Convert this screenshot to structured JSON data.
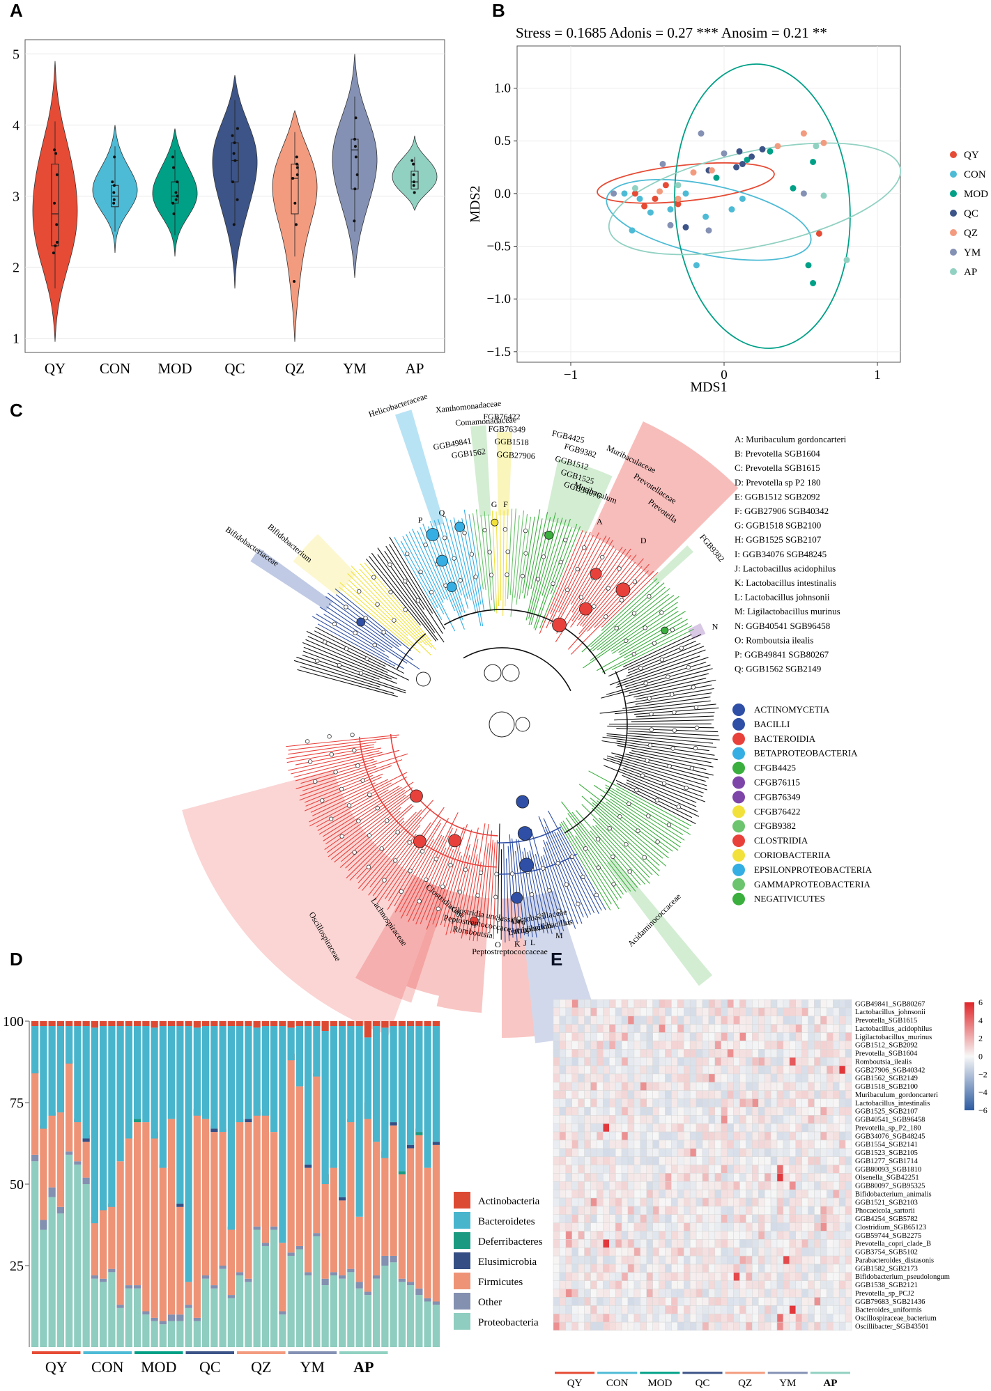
{
  "panels": {
    "a": "A",
    "b": "B",
    "c": "C",
    "d": "D",
    "e": "E"
  },
  "colors": {
    "QY": "#E64B35",
    "CON": "#4DBBD5",
    "MOD": "#00A087",
    "QC": "#3C5488",
    "QZ": "#F39B7F",
    "YM": "#8491B4",
    "AP": "#91D1C2"
  },
  "chart_data": [
    {
      "id": "A",
      "type": "violin",
      "title": "",
      "categories": [
        "QY",
        "CON",
        "MOD",
        "QC",
        "QZ",
        "YM",
        "AP"
      ],
      "ylim": [
        0.8,
        5.2
      ],
      "yticks": [
        1,
        2,
        3,
        4,
        5
      ],
      "violin_range": [
        [
          0.95,
          4.9
        ],
        [
          2.2,
          4.0
        ],
        [
          2.15,
          3.95
        ],
        [
          1.7,
          4.7
        ],
        [
          0.95,
          4.2
        ],
        [
          1.85,
          5.0
        ],
        [
          2.8,
          3.85
        ]
      ],
      "box": [
        [
          2.3,
          2.75,
          3.45
        ],
        [
          2.85,
          3.0,
          3.15
        ],
        [
          2.9,
          3.0,
          3.2
        ],
        [
          3.2,
          3.5,
          3.75
        ],
        [
          2.75,
          3.25,
          3.45
        ],
        [
          3.1,
          3.65,
          3.8
        ],
        [
          3.1,
          3.2,
          3.35
        ]
      ],
      "points": [
        [
          2.2,
          2.3,
          2.35,
          2.6,
          2.9,
          3.3,
          3.6,
          3.65
        ],
        [
          2.9,
          2.95,
          3.05,
          3.15,
          3.2,
          3.55
        ],
        [
          2.75,
          2.9,
          2.95,
          3.0,
          3.05,
          3.2,
          3.4,
          3.55
        ],
        [
          2.6,
          2.95,
          3.2,
          3.5,
          3.6,
          3.75,
          3.85,
          3.95
        ],
        [
          1.8,
          2.6,
          2.9,
          3.25,
          3.3,
          3.4,
          3.45,
          3.55
        ],
        [
          2.65,
          3.1,
          3.3,
          3.55,
          3.7,
          3.8,
          4.1
        ],
        [
          3.05,
          3.15,
          3.2,
          3.3,
          3.45,
          3.5
        ]
      ]
    },
    {
      "id": "B",
      "type": "scatter",
      "title": "Stress = 0.1685 Adonis = 0.27 *** Anosim = 0.21 **",
      "xlabel": "MDS1",
      "ylabel": "MDS2",
      "xlim": [
        -1.35,
        1.15
      ],
      "ylim": [
        -1.6,
        1.4
      ],
      "xticks": [
        -1,
        0,
        1
      ],
      "yticks": [
        -1.5,
        -1.0,
        -0.5,
        0.0,
        0.5,
        1.0
      ],
      "ytick_labels": [
        "−1.5",
        "−1.0",
        "−0.5",
        "0.0",
        "0.5",
        "1.0"
      ],
      "xtick_labels": [
        "−1",
        "0",
        "1"
      ],
      "legend": [
        "QY",
        "CON",
        "MOD",
        "QC",
        "QZ",
        "YM",
        "AP"
      ],
      "points": {
        "QY": [
          [
            -0.58,
            0.0
          ],
          [
            -0.52,
            -0.12
          ],
          [
            -0.45,
            -0.05
          ],
          [
            -0.38,
            0.08
          ],
          [
            -0.3,
            -0.1
          ],
          [
            0.62,
            -0.38
          ]
        ],
        "CON": [
          [
            -0.65,
            0.0
          ],
          [
            -0.55,
            -0.05
          ],
          [
            -0.48,
            -0.18
          ],
          [
            -0.35,
            -0.15
          ],
          [
            -0.25,
            0.0
          ],
          [
            -0.12,
            -0.22
          ],
          [
            0.05,
            -0.15
          ],
          [
            -0.18,
            -0.68
          ],
          [
            -0.6,
            -0.35
          ],
          [
            0.12,
            -0.05
          ]
        ],
        "MOD": [
          [
            -0.05,
            0.15
          ],
          [
            0.15,
            0.32
          ],
          [
            0.3,
            0.4
          ],
          [
            0.45,
            0.05
          ],
          [
            0.58,
            0.3
          ],
          [
            0.55,
            -0.68
          ],
          [
            0.58,
            -0.85
          ]
        ],
        "QC": [
          [
            -0.1,
            0.22
          ],
          [
            0.08,
            0.25
          ],
          [
            0.12,
            0.28
          ],
          [
            0.18,
            0.35
          ],
          [
            0.25,
            0.42
          ],
          [
            0.1,
            0.4
          ],
          [
            -0.25,
            -0.32
          ]
        ],
        "QZ": [
          [
            -0.2,
            0.2
          ],
          [
            -0.08,
            0.22
          ],
          [
            -0.42,
            0.02
          ],
          [
            0.35,
            0.45
          ],
          [
            0.52,
            0.57
          ],
          [
            0.65,
            0.48
          ],
          [
            -0.3,
            -0.05
          ]
        ],
        "YM": [
          [
            -0.4,
            0.28
          ],
          [
            -0.72,
            0.0
          ],
          [
            0.0,
            0.38
          ],
          [
            0.52,
            0.0
          ],
          [
            -0.1,
            -0.35
          ],
          [
            -0.15,
            0.57
          ],
          [
            -0.35,
            -0.3
          ]
        ],
        "AP": [
          [
            0.6,
            0.45
          ],
          [
            0.65,
            -0.02
          ],
          [
            0.8,
            -0.63
          ],
          [
            -0.3,
            0.08
          ],
          [
            -0.58,
            0.05
          ]
        ]
      },
      "ellipses": {
        "QY": {
          "cx": -0.25,
          "cy": 0.1,
          "rx": 0.58,
          "ry": 0.17,
          "angle": -6
        },
        "CON": {
          "cx": -0.1,
          "cy": -0.25,
          "rx": 0.68,
          "ry": 0.33,
          "angle": 12
        },
        "MOD": {
          "cx": 0.25,
          "cy": -0.12,
          "rx": 0.57,
          "ry": 1.35,
          "angle": -4
        },
        "AP": {
          "cx": 0.2,
          "cy": -0.05,
          "rx": 0.97,
          "ry": 0.45,
          "angle": -12
        }
      }
    },
    {
      "id": "C",
      "type": "cladogram",
      "sector_labels": [
        "Helicobacteraceae",
        "Xanthomonadaceae",
        "Comamonadaceae",
        "FGB76422",
        "FGB76349",
        "GGB1518",
        "GGB27906",
        "GGB49841",
        "GGB1562",
        "FGB4425",
        "FGB9382",
        "GGB1512",
        "GGB1525",
        "GGB34076",
        "Muribaculaceae",
        "Muribaculum",
        "Prevotellaceae",
        "Prevotella",
        "FGB9382",
        "Bifidobacteriaceae",
        "Bifidobacterium",
        "Oscillospiraceae",
        "Lachnospiraceae",
        "Clostridiaceae",
        "Romboutsia",
        "Peptostreptococcaceae",
        "Clostridia unclassified",
        "Lactobacillus",
        "Lactobacillaceae",
        "Ligilactobacillus",
        "Peptostreptococcaceae",
        "Acidaminococcaceae"
      ],
      "node_letters": [
        "P",
        "Q",
        "G",
        "F",
        "A",
        "D",
        "N",
        "O",
        "J",
        "K",
        "L",
        "M"
      ],
      "key": [
        "A: Muribaculum gordoncarteri",
        "B: Prevotella SGB1604",
        "C: Prevotella SGB1615",
        "D: Prevotella sp P2 180",
        "E: GGB1512 SGB2092",
        "F: GGB27906 SGB40342",
        "G: GGB1518 SGB2100",
        "H: GGB1525 SGB2107",
        "I: GGB34076 SGB48245",
        "J: Lactobacillus acidophilus",
        "K: Lactobacillus intestinalis",
        "L: Lactobacillus johnsonii",
        "M: Ligilactobacillus murinus",
        "N: GGB40541 SGB96458",
        "O: Romboutsia ilealis",
        "P: GGB49841 SGB80267",
        "Q: GGB1562 SGB2149"
      ],
      "legend": [
        {
          "label": "ACTINOMYCETIA",
          "color": "#2F4FA6"
        },
        {
          "label": "BACILLI",
          "color": "#2F4FA6"
        },
        {
          "label": "BACTEROIDIA",
          "color": "#E8413C"
        },
        {
          "label": "BETAPROTEOBACTERIA",
          "color": "#35AEE3"
        },
        {
          "label": "CFGB4425",
          "color": "#3BAF3E"
        },
        {
          "label": "CFGB76115",
          "color": "#7E45A8"
        },
        {
          "label": "CFGB76349",
          "color": "#7E45A8"
        },
        {
          "label": "CFGB76422",
          "color": "#F2E13A"
        },
        {
          "label": "CFGB9382",
          "color": "#6CC46E"
        },
        {
          "label": "CLOSTRIDIA",
          "color": "#E8413C"
        },
        {
          "label": "CORIOBACTERIIA",
          "color": "#F2E13A"
        },
        {
          "label": "EPSILONPROTEOBACTERIA",
          "color": "#35AEE3"
        },
        {
          "label": "GAMMAPROTEOBACTERIA",
          "color": "#6CC46E"
        },
        {
          "label": "NEGATIVICUTES",
          "color": "#3BAF3E"
        }
      ]
    },
    {
      "id": "D",
      "type": "stacked_bar",
      "ylim": [
        0,
        100
      ],
      "yticks": [
        25,
        50,
        75,
        100
      ],
      "groups": [
        "QY",
        "CON",
        "MOD",
        "QC",
        "QZ",
        "YM",
        "AP"
      ],
      "bars_per_group": 6,
      "series_names": [
        "Actinobacteria",
        "Bacteroidetes",
        "Deferribacteres",
        "Elusimicrobia",
        "Firmicutes",
        "Other",
        "Proteobacteria"
      ],
      "series_colors": [
        "#DC4A34",
        "#48B5CD",
        "#1B9A81",
        "#354F84",
        "#EE9376",
        "#8390B0",
        "#8ECDBF"
      ],
      "proteobacteria": [
        57,
        36,
        46,
        41,
        59,
        56,
        50,
        21,
        20,
        23,
        12,
        18,
        18,
        10,
        8,
        7,
        8,
        8,
        12,
        8,
        21,
        18,
        24,
        15,
        22,
        20,
        36,
        31,
        36,
        10,
        28,
        30,
        22,
        34,
        19,
        22,
        21,
        23,
        18,
        16,
        21,
        25,
        26,
        20,
        19,
        16,
        14,
        13
      ],
      "other": [
        2,
        3,
        3,
        2,
        1,
        1,
        2,
        1,
        1,
        1,
        1,
        1,
        1,
        1,
        1,
        1,
        2,
        2,
        1,
        1,
        1,
        1,
        1,
        1,
        1,
        1,
        1,
        1,
        1,
        1,
        1,
        1,
        1,
        1,
        2,
        1,
        1,
        1,
        2,
        1,
        1,
        3,
        2,
        1,
        1,
        2,
        1,
        1
      ],
      "firmicutes": [
        25,
        28,
        22,
        29,
        27,
        12,
        11,
        16,
        21,
        19,
        44,
        45,
        50,
        58,
        55,
        47,
        60,
        33,
        7,
        62,
        48,
        47,
        41,
        20,
        46,
        48,
        34,
        39,
        29,
        21,
        59,
        49,
        32,
        48,
        29,
        32,
        23,
        45,
        20,
        53,
        41,
        30,
        40,
        32,
        41,
        47,
        40,
        48
      ],
      "elusimicrobia": [
        0,
        0,
        0,
        0,
        0,
        0,
        1,
        0,
        0,
        0,
        0,
        0,
        0,
        0,
        0,
        0,
        0,
        1,
        0,
        0,
        0,
        1,
        0,
        0,
        0,
        1,
        0,
        0,
        0,
        0,
        0,
        0,
        1,
        0,
        0,
        0,
        1,
        0,
        0,
        0,
        0,
        0,
        1,
        0,
        1,
        0,
        0,
        1
      ],
      "deferribacteres": [
        0,
        0,
        0,
        0,
        0,
        0,
        0,
        0,
        0,
        0,
        0,
        0,
        1,
        0,
        0,
        0,
        0,
        0,
        0,
        0,
        0,
        0,
        0,
        0,
        0,
        0,
        0,
        0,
        0,
        0,
        0,
        0,
        0,
        0,
        0,
        0,
        0,
        0,
        0,
        0,
        0,
        0,
        0,
        1,
        0,
        1,
        0,
        0
      ],
      "actinobacteria": [
        1,
        1,
        1,
        0,
        1,
        1,
        1,
        2,
        1,
        1,
        0,
        0,
        0,
        0,
        2,
        1,
        0,
        0,
        0,
        2,
        0,
        1,
        1,
        1,
        1,
        0,
        2,
        1,
        0,
        0,
        2,
        0,
        0,
        1,
        3,
        1,
        0,
        1,
        0,
        5,
        0,
        2,
        0,
        0,
        1,
        1,
        0,
        0
      ]
    },
    {
      "id": "E",
      "type": "heatmap",
      "rows": [
        "GGB49841_SGB80267",
        "Lactobacillus_johnsonii",
        "Prevotella_SGB1615",
        "Lactobacillus_acidophilus",
        "Ligilactobacillus_murinus",
        "GGB1512_SGB2092",
        "Prevotella_SGB1604",
        "Romboutsia_ilealis",
        "GGB27906_SGB40342",
        "GGB1562_SGB2149",
        "GGB1518_SGB2100",
        "Muribaculum_gordoncarteri",
        "Lactobacillus_intestinalis",
        "GGB1525_SGB2107",
        "GGB40541_SGB96458",
        "Prevotella_sp_P2_180",
        "GGB34076_SGB48245",
        "GGB1554_SGB2141",
        "GGB1523_SGB2105",
        "GGB1277_SGB1714",
        "GGB80093_SGB1810",
        "Olsenella_SGB42251",
        "GGB80097_SGB95325",
        "Bifidobacterium_animalis",
        "GGB1521_SGB2103",
        "Phocaeicola_sartorii",
        "GGB4254_SGB5782",
        "Clostridium_SGB65123",
        "GGB59744_SGB2275",
        "Prevotella_copri_clade_B",
        "GGB3754_SGB5102",
        "Parabacteroides_distasonis",
        "GGB1582_SGB2173",
        "Bifidobacterium_pseudolongum",
        "GGB1538_SGB2121",
        "Prevotella_sp_PCJ2",
        "GGB79683_SGB21436",
        "Bacteroides_uniformis",
        "Oscillospiraceae_bacterium",
        "Oscillibacter_SGB43501"
      ],
      "groups": [
        "QY",
        "CON",
        "MOD",
        "QC",
        "QZ",
        "YM",
        "AP"
      ],
      "n_cols": 48,
      "color_scale": {
        "min": -6,
        "max": 6,
        "low": "#2C5AA0",
        "mid": "#F7F7F7",
        "high": "#E0262A"
      },
      "colorbar_ticks": [
        6,
        4,
        2,
        0,
        -2,
        -4,
        -6
      ],
      "colorbar_labels": [
        "6",
        "4",
        "2",
        "0",
        "−2",
        "−4",
        "−6"
      ],
      "strong_cells": [
        [
          0,
          3,
          2.8
        ],
        [
          3,
          17,
          3.0
        ],
        [
          5,
          26,
          2.5
        ],
        [
          7,
          38,
          4.5
        ],
        [
          8,
          46,
          5.5
        ],
        [
          9,
          25,
          3.0
        ],
        [
          10,
          14,
          3.0
        ],
        [
          14,
          27,
          3.0
        ],
        [
          15,
          8,
          5.5
        ],
        [
          16,
          11,
          3.0
        ],
        [
          18,
          22,
          3.0
        ],
        [
          20,
          36,
          4.0
        ],
        [
          21,
          36,
          5.5
        ],
        [
          22,
          38,
          3.0
        ],
        [
          27,
          43,
          3.0
        ],
        [
          28,
          2,
          3.0
        ],
        [
          29,
          8,
          5.5
        ],
        [
          31,
          37,
          5.0
        ],
        [
          33,
          29,
          5.0
        ],
        [
          35,
          2,
          3.0
        ],
        [
          37,
          38,
          5.5
        ],
        [
          38,
          36,
          4.0
        ],
        [
          39,
          0,
          3.0
        ],
        [
          39,
          36,
          3.0
        ],
        [
          36,
          42,
          3.0
        ],
        [
          2,
          12,
          3.0
        ],
        [
          12,
          32,
          3.0
        ],
        [
          6,
          28,
          3.0
        ],
        [
          4,
          30,
          3.0
        ],
        [
          24,
          6,
          3.0
        ]
      ]
    }
  ]
}
